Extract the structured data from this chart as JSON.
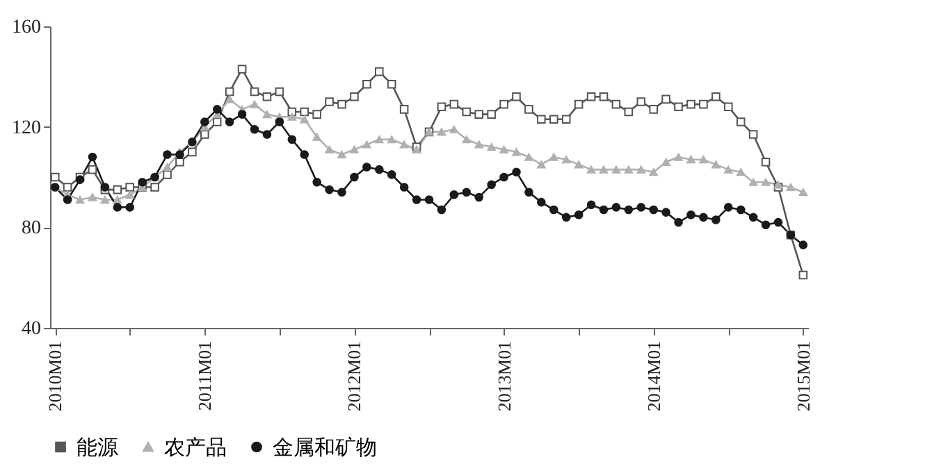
{
  "chart_data": {
    "type": "line",
    "categories": [
      "2010M01",
      null,
      null,
      null,
      null,
      null,
      null,
      null,
      null,
      null,
      null,
      null,
      "2011M01",
      null,
      null,
      null,
      null,
      null,
      null,
      null,
      null,
      null,
      null,
      null,
      "2012M01",
      null,
      null,
      null,
      null,
      null,
      null,
      null,
      null,
      null,
      null,
      null,
      "2013M01",
      null,
      null,
      null,
      null,
      null,
      null,
      null,
      null,
      null,
      null,
      null,
      "2014M01",
      null,
      null,
      null,
      null,
      null,
      null,
      null,
      null,
      null,
      null,
      null,
      "2015M01"
    ],
    "series": [
      {
        "name": "能源",
        "color": "#555555",
        "marker": "square",
        "values": [
          100,
          96,
          100,
          103,
          95,
          95,
          96,
          96,
          96,
          101,
          106,
          110,
          117,
          122,
          134,
          143,
          134,
          132,
          134,
          126,
          126,
          125,
          130,
          129,
          132,
          137,
          142,
          137,
          127,
          112,
          118,
          128,
          129,
          126,
          125,
          125,
          129,
          132,
          127,
          123,
          123,
          123,
          129,
          132,
          132,
          129,
          126,
          130,
          127,
          131,
          128,
          129,
          129,
          132,
          128,
          122,
          117,
          106,
          96,
          77,
          61
        ]
      },
      {
        "name": "农产品",
        "color": "#b0b0b0",
        "marker": "triangle",
        "values": [
          96,
          93,
          91,
          92,
          91,
          91,
          93,
          96,
          100,
          104,
          110,
          114,
          120,
          125,
          131,
          127,
          129,
          125,
          124,
          124,
          123,
          116,
          111,
          109,
          111,
          113,
          115,
          115,
          113,
          111,
          118,
          118,
          119,
          115,
          113,
          112,
          111,
          110,
          108,
          105,
          108,
          107,
          105,
          103,
          103,
          103,
          103,
          103,
          102,
          106,
          108,
          107,
          107,
          105,
          103,
          102,
          98,
          98,
          97,
          96,
          94
        ]
      },
      {
        "name": "金属和矿物",
        "color": "#1a1a1a",
        "marker": "circle",
        "values": [
          96,
          91,
          99,
          108,
          96,
          88,
          88,
          98,
          100,
          109,
          109,
          114,
          122,
          127,
          122,
          125,
          119,
          117,
          122,
          115,
          109,
          98,
          95,
          94,
          100,
          104,
          103,
          101,
          96,
          91,
          91,
          87,
          93,
          94,
          92,
          97,
          100,
          102,
          94,
          90,
          87,
          84,
          85,
          89,
          87,
          88,
          87,
          88,
          87,
          86,
          82,
          85,
          84,
          83,
          88,
          87,
          84,
          81,
          82,
          77,
          73
        ]
      }
    ],
    "ylim": [
      40,
      160
    ],
    "yticks": [
      40,
      80,
      120,
      160
    ],
    "grid": false,
    "legend": "bottom"
  }
}
